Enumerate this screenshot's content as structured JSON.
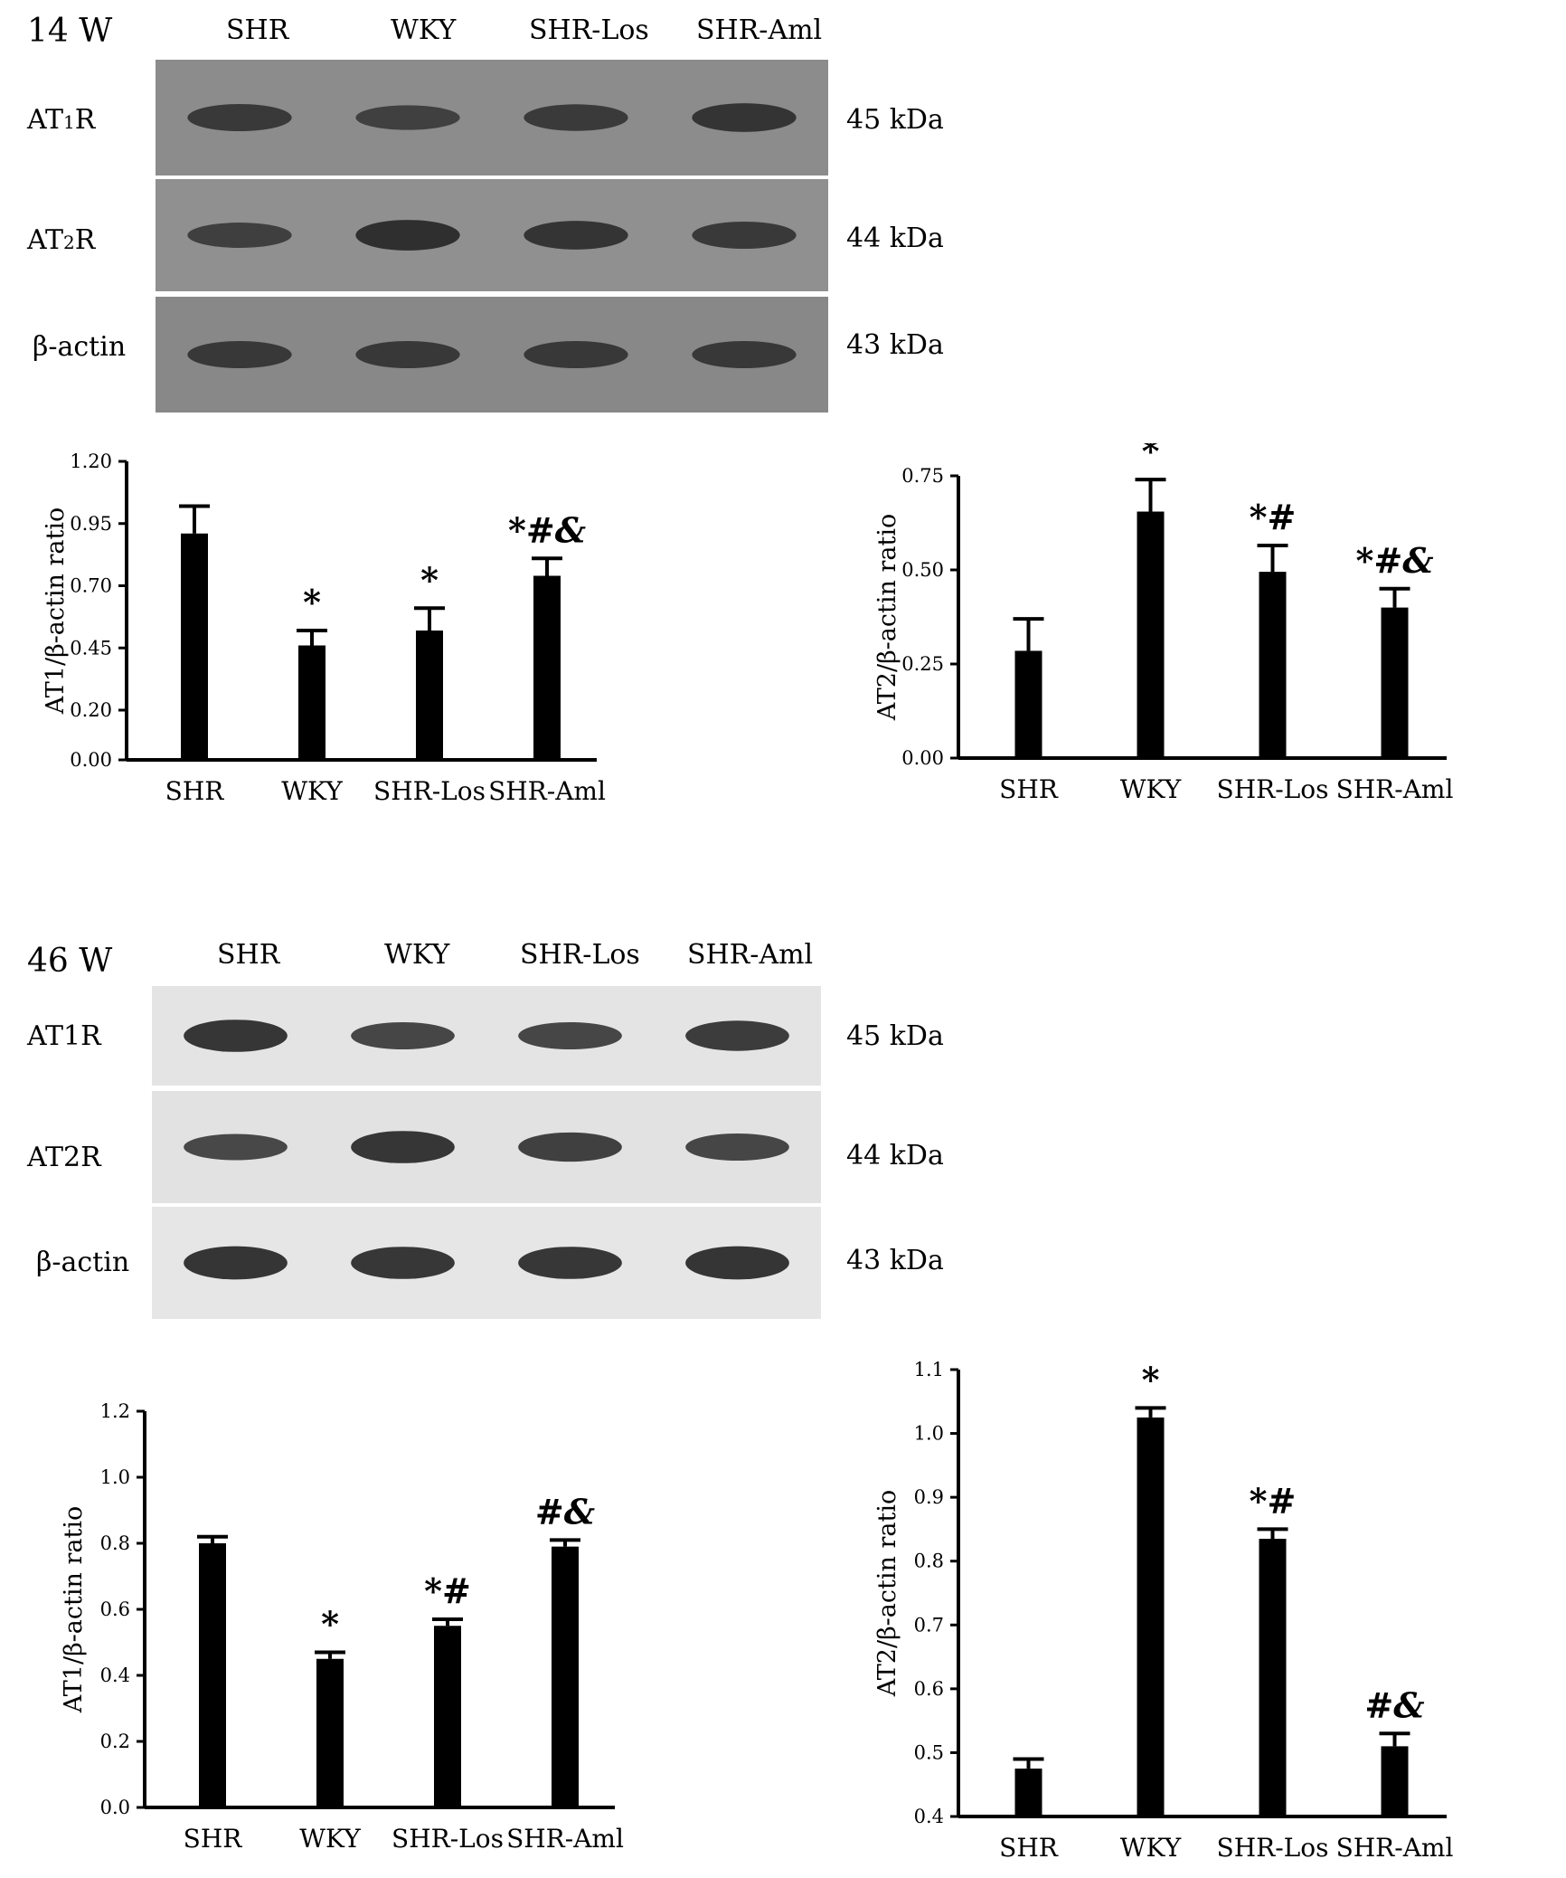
{
  "groups": [
    "SHR",
    "WKY",
    "SHR-Los",
    "SHR-Aml"
  ],
  "blots": [
    {
      "section_label": "14 W",
      "rows": [
        {
          "label_main": "AT",
          "label_sub": "1",
          "label_tail": "R",
          "kda": "45 kDa",
          "intensity": [
            0.55,
            0.42,
            0.52,
            0.62
          ]
        },
        {
          "label_main": "AT",
          "label_sub": "2",
          "label_tail": "R",
          "kda": "44 kDa",
          "intensity": [
            0.45,
            0.72,
            0.62,
            0.55
          ]
        },
        {
          "label_main": "β-actin",
          "label_sub": "",
          "label_tail": "",
          "kda": "43 kDa",
          "intensity": [
            0.55,
            0.55,
            0.55,
            0.55
          ]
        }
      ]
    },
    {
      "section_label": "46 W",
      "rows": [
        {
          "label_main": "AT1R",
          "label_sub": "",
          "label_tail": "",
          "kda": "45 kDa",
          "intensity": [
            0.8,
            0.55,
            0.55,
            0.7
          ]
        },
        {
          "label_main": "AT2R",
          "label_sub": "",
          "label_tail": "",
          "kda": "44 kDa",
          "intensity": [
            0.5,
            0.8,
            0.65,
            0.55
          ]
        },
        {
          "label_main": "β-actin",
          "label_sub": "",
          "label_tail": "",
          "kda": "43 kDa",
          "intensity": [
            0.85,
            0.8,
            0.8,
            0.85
          ]
        }
      ]
    }
  ],
  "chart_data": [
    {
      "type": "bar",
      "categories": [
        "SHR",
        "WKY",
        "SHR-Los",
        "SHR-Aml"
      ],
      "values": [
        0.91,
        0.46,
        0.52,
        0.74
      ],
      "errors": [
        0.11,
        0.06,
        0.09,
        0.07
      ],
      "annotations": [
        "",
        "*",
        "*",
        "*#&"
      ],
      "ylabel": "AT1/β-actin ratio",
      "yticks": [
        "1.20",
        "0.95",
        "0.70",
        "0.45",
        "0.20",
        "0.00"
      ],
      "ylim": [
        0,
        1.2
      ]
    },
    {
      "type": "bar",
      "categories": [
        "SHR",
        "WKY",
        "SHR-Los",
        "SHR-Aml"
      ],
      "values": [
        0.285,
        0.655,
        0.495,
        0.4
      ],
      "errors": [
        0.085,
        0.085,
        0.07,
        0.05
      ],
      "annotations": [
        "",
        "*",
        "*#",
        "*#&"
      ],
      "ylabel": "AT2/β-actin ratio",
      "yticks": [
        "0.75",
        "0.50",
        "0.25",
        "0.00"
      ],
      "ylim": [
        0,
        0.75
      ]
    },
    {
      "type": "bar",
      "categories": [
        "SHR",
        "WKY",
        "SHR-Los",
        "SHR-Aml"
      ],
      "values": [
        0.8,
        0.45,
        0.55,
        0.79
      ],
      "errors": [
        0.02,
        0.02,
        0.02,
        0.02
      ],
      "annotations": [
        "",
        "*",
        "*#",
        "#&"
      ],
      "ylabel": "AT1/β-actin ratio",
      "yticks": [
        "1.2",
        "1.0",
        "0.8",
        "0.6",
        "0.4",
        "0.2",
        "0.0"
      ],
      "ylim": [
        0,
        1.2
      ]
    },
    {
      "type": "bar",
      "categories": [
        "SHR",
        "WKY",
        "SHR-Los",
        "SHR-Aml"
      ],
      "values": [
        0.475,
        1.025,
        0.835,
        0.51
      ],
      "errors": [
        0.015,
        0.015,
        0.015,
        0.02
      ],
      "annotations": [
        "",
        "*",
        "*#",
        "#&"
      ],
      "ylabel": "AT2/β-actin ratio",
      "yticks": [
        "1.1",
        "1.0",
        "0.9",
        "0.8",
        "0.7",
        "0.6",
        "0.5",
        "0.4"
      ],
      "ylim": [
        0.4,
        1.1
      ]
    }
  ]
}
